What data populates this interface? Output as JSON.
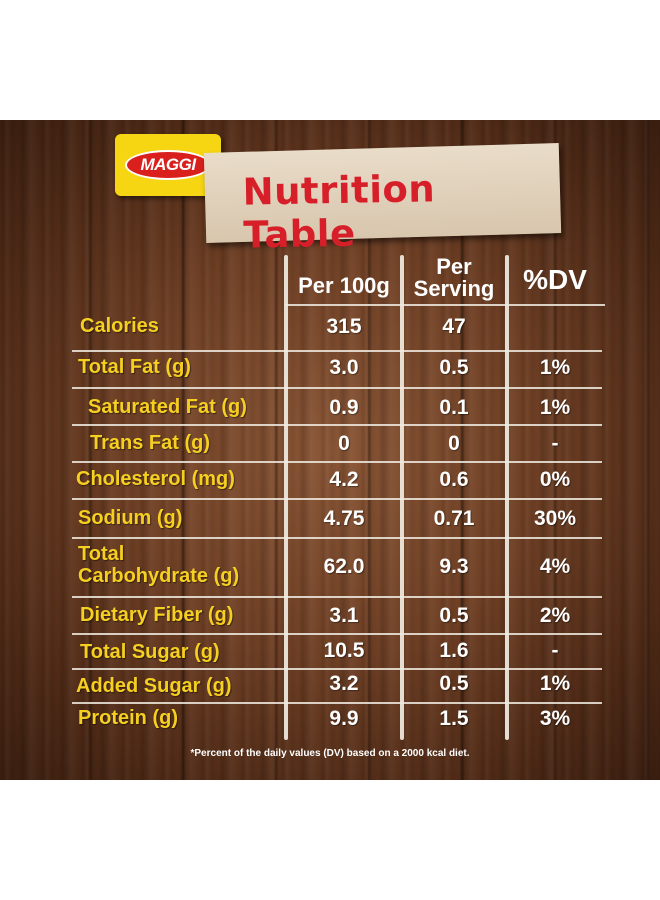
{
  "brand": {
    "logo_text": "MAGGI"
  },
  "title": "Nutrition Table",
  "headers": {
    "per100g": "Per 100g",
    "perServing_line1": "Per",
    "perServing_line2": "Serving",
    "dv": "%DV"
  },
  "rows": [
    {
      "label": "Calories",
      "per100g": "315",
      "perServing": "47",
      "dv": ""
    },
    {
      "label": "Total Fat (g)",
      "per100g": "3.0",
      "perServing": "0.5",
      "dv": "1%"
    },
    {
      "label": "Saturated Fat (g)",
      "per100g": "0.9",
      "perServing": "0.1",
      "dv": "1%"
    },
    {
      "label": "Trans Fat (g)",
      "per100g": "0",
      "perServing": "0",
      "dv": "-"
    },
    {
      "label": "Cholesterol (mg)",
      "per100g": "4.2",
      "perServing": "0.6",
      "dv": "0%"
    },
    {
      "label": "Sodium (g)",
      "per100g": "4.75",
      "perServing": "0.71",
      "dv": "30%"
    },
    {
      "label_line1": "Total",
      "label_line2": "Carbohydrate (g)",
      "per100g": "62.0",
      "perServing": "9.3",
      "dv": "4%"
    },
    {
      "label": "Dietary Fiber (g)",
      "per100g": "3.1",
      "perServing": "0.5",
      "dv": "2%"
    },
    {
      "label": "Total Sugar (g)",
      "per100g": "10.5",
      "perServing": "1.6",
      "dv": "-"
    },
    {
      "label": "Added Sugar (g)",
      "per100g": "3.2",
      "perServing": "0.5",
      "dv": "1%"
    },
    {
      "label": "Protein (g)",
      "per100g": "9.9",
      "perServing": "1.5",
      "dv": "3%"
    }
  ],
  "footnote": "*Percent of the daily values (DV) based on a 2000 kcal diet."
}
